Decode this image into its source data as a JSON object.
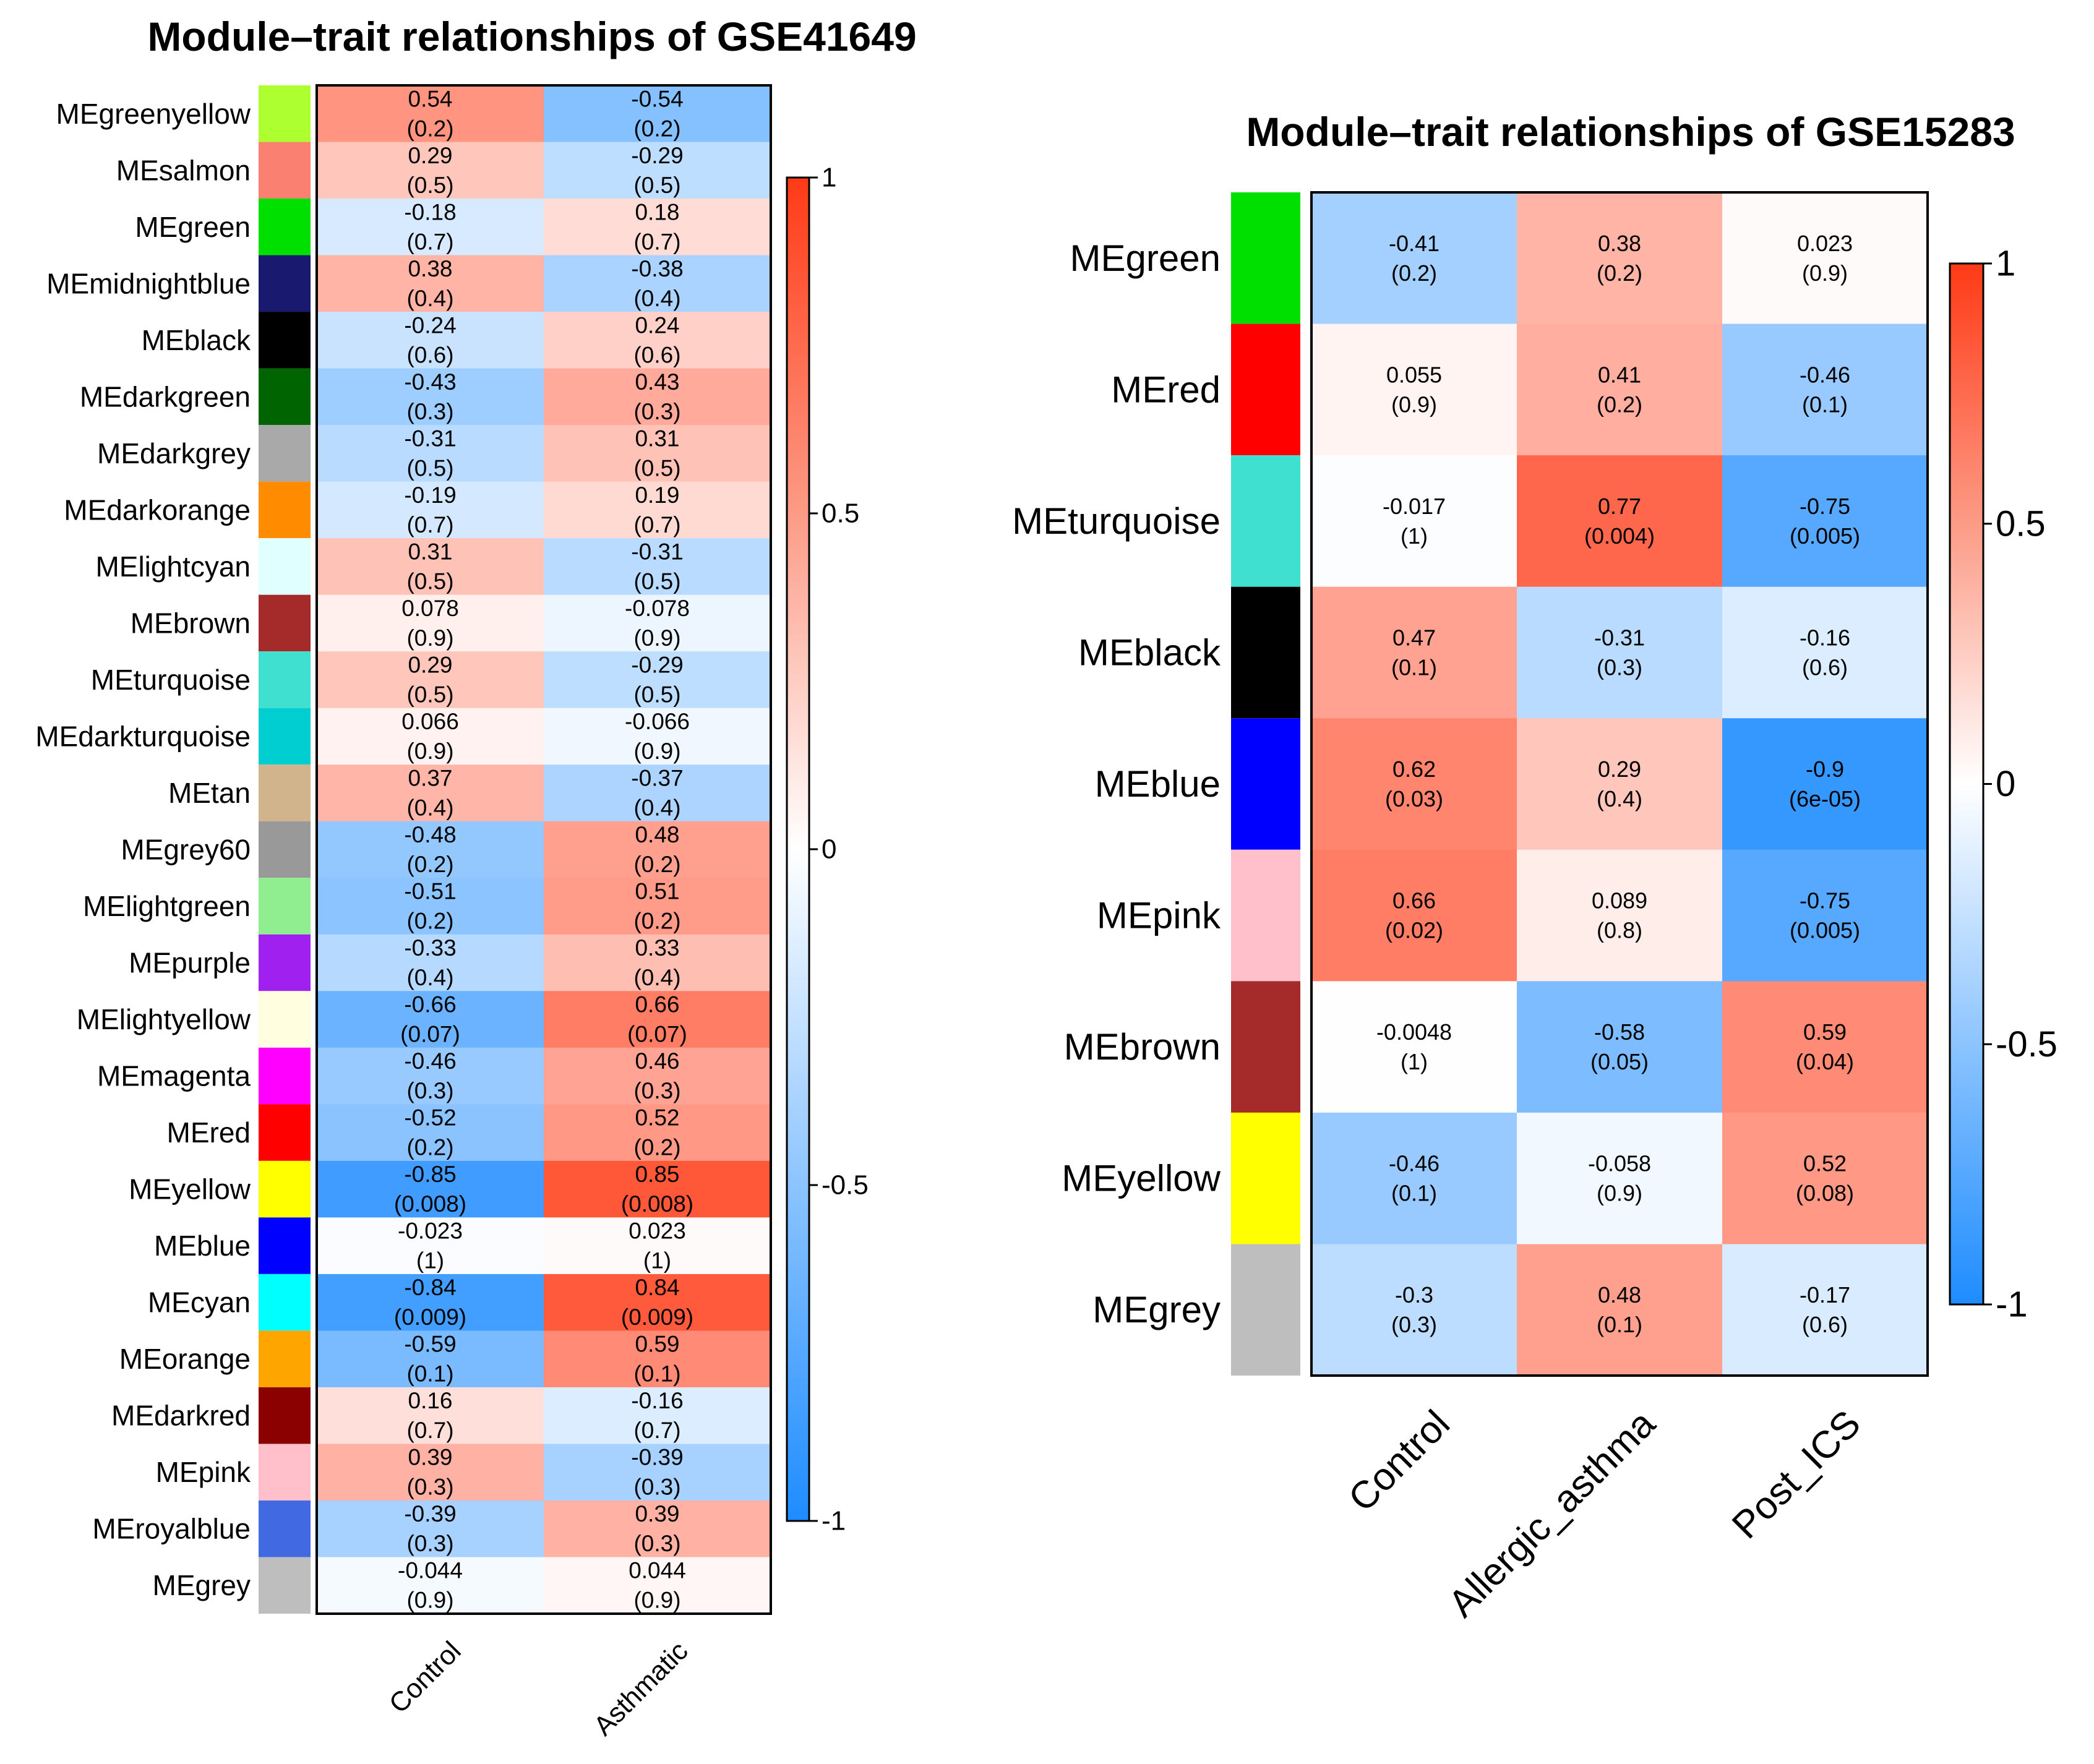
{
  "chart_data": [
    {
      "type": "heatmap",
      "title": "Module–trait relationships of GSE41649",
      "columns": [
        "Control",
        "Asthmatic"
      ],
      "rows": [
        {
          "module": "MEgreenyellow",
          "color": "#adff2f",
          "cells": [
            {
              "r": "0.54",
              "p": "(0.2)"
            },
            {
              "r": "-0.54",
              "p": "(0.2)"
            }
          ]
        },
        {
          "module": "MEsalmon",
          "color": "#fa8072",
          "cells": [
            {
              "r": "0.29",
              "p": "(0.5)"
            },
            {
              "r": "-0.29",
              "p": "(0.5)"
            }
          ]
        },
        {
          "module": "MEgreen",
          "color": "#00e000",
          "cells": [
            {
              "r": "-0.18",
              "p": "(0.7)"
            },
            {
              "r": "0.18",
              "p": "(0.7)"
            }
          ]
        },
        {
          "module": "MEmidnightblue",
          "color": "#191970",
          "cells": [
            {
              "r": "0.38",
              "p": "(0.4)"
            },
            {
              "r": "-0.38",
              "p": "(0.4)"
            }
          ]
        },
        {
          "module": "MEblack",
          "color": "#000000",
          "cells": [
            {
              "r": "-0.24",
              "p": "(0.6)"
            },
            {
              "r": "0.24",
              "p": "(0.6)"
            }
          ]
        },
        {
          "module": "MEdarkgreen",
          "color": "#006400",
          "cells": [
            {
              "r": "-0.43",
              "p": "(0.3)"
            },
            {
              "r": "0.43",
              "p": "(0.3)"
            }
          ]
        },
        {
          "module": "MEdarkgrey",
          "color": "#a9a9a9",
          "cells": [
            {
              "r": "-0.31",
              "p": "(0.5)"
            },
            {
              "r": "0.31",
              "p": "(0.5)"
            }
          ]
        },
        {
          "module": "MEdarkorange",
          "color": "#ff8c00",
          "cells": [
            {
              "r": "-0.19",
              "p": "(0.7)"
            },
            {
              "r": "0.19",
              "p": "(0.7)"
            }
          ]
        },
        {
          "module": "MElightcyan",
          "color": "#e0ffff",
          "cells": [
            {
              "r": "0.31",
              "p": "(0.5)"
            },
            {
              "r": "-0.31",
              "p": "(0.5)"
            }
          ]
        },
        {
          "module": "MEbrown",
          "color": "#a52a2a",
          "cells": [
            {
              "r": "0.078",
              "p": "(0.9)"
            },
            {
              "r": "-0.078",
              "p": "(0.9)"
            }
          ]
        },
        {
          "module": "MEturquoise",
          "color": "#40e0d0",
          "cells": [
            {
              "r": "0.29",
              "p": "(0.5)"
            },
            {
              "r": "-0.29",
              "p": "(0.5)"
            }
          ]
        },
        {
          "module": "MEdarkturquoise",
          "color": "#00ced1",
          "cells": [
            {
              "r": "0.066",
              "p": "(0.9)"
            },
            {
              "r": "-0.066",
              "p": "(0.9)"
            }
          ]
        },
        {
          "module": "MEtan",
          "color": "#d2b48c",
          "cells": [
            {
              "r": "0.37",
              "p": "(0.4)"
            },
            {
              "r": "-0.37",
              "p": "(0.4)"
            }
          ]
        },
        {
          "module": "MEgrey60",
          "color": "#999999",
          "cells": [
            {
              "r": "-0.48",
              "p": "(0.2)"
            },
            {
              "r": "0.48",
              "p": "(0.2)"
            }
          ]
        },
        {
          "module": "MElightgreen",
          "color": "#90ee90",
          "cells": [
            {
              "r": "-0.51",
              "p": "(0.2)"
            },
            {
              "r": "0.51",
              "p": "(0.2)"
            }
          ]
        },
        {
          "module": "MEpurple",
          "color": "#a020f0",
          "cells": [
            {
              "r": "-0.33",
              "p": "(0.4)"
            },
            {
              "r": "0.33",
              "p": "(0.4)"
            }
          ]
        },
        {
          "module": "MElightyellow",
          "color": "#ffffe0",
          "cells": [
            {
              "r": "-0.66",
              "p": "(0.07)"
            },
            {
              "r": "0.66",
              "p": "(0.07)"
            }
          ]
        },
        {
          "module": "MEmagenta",
          "color": "#ff00ff",
          "cells": [
            {
              "r": "-0.46",
              "p": "(0.3)"
            },
            {
              "r": "0.46",
              "p": "(0.3)"
            }
          ]
        },
        {
          "module": "MEred",
          "color": "#ff0000",
          "cells": [
            {
              "r": "-0.52",
              "p": "(0.2)"
            },
            {
              "r": "0.52",
              "p": "(0.2)"
            }
          ]
        },
        {
          "module": "MEyellow",
          "color": "#ffff00",
          "cells": [
            {
              "r": "-0.85",
              "p": "(0.008)"
            },
            {
              "r": "0.85",
              "p": "(0.008)"
            }
          ]
        },
        {
          "module": "MEblue",
          "color": "#0000ff",
          "cells": [
            {
              "r": "-0.023",
              "p": "(1)"
            },
            {
              "r": "0.023",
              "p": "(1)"
            }
          ]
        },
        {
          "module": "MEcyan",
          "color": "#00ffff",
          "cells": [
            {
              "r": "-0.84",
              "p": "(0.009)"
            },
            {
              "r": "0.84",
              "p": "(0.009)"
            }
          ]
        },
        {
          "module": "MEorange",
          "color": "#ffa500",
          "cells": [
            {
              "r": "-0.59",
              "p": "(0.1)"
            },
            {
              "r": "0.59",
              "p": "(0.1)"
            }
          ]
        },
        {
          "module": "MEdarkred",
          "color": "#8b0000",
          "cells": [
            {
              "r": "0.16",
              "p": "(0.7)"
            },
            {
              "r": "-0.16",
              "p": "(0.7)"
            }
          ]
        },
        {
          "module": "MEpink",
          "color": "#ffc0cb",
          "cells": [
            {
              "r": "0.39",
              "p": "(0.3)"
            },
            {
              "r": "-0.39",
              "p": "(0.3)"
            }
          ]
        },
        {
          "module": "MEroyalblue",
          "color": "#4169e1",
          "cells": [
            {
              "r": "-0.39",
              "p": "(0.3)"
            },
            {
              "r": "0.39",
              "p": "(0.3)"
            }
          ]
        },
        {
          "module": "MEgrey",
          "color": "#bebebe",
          "cells": [
            {
              "r": "-0.044",
              "p": "(0.9)"
            },
            {
              "r": "0.044",
              "p": "(0.9)"
            }
          ]
        }
      ],
      "legend": {
        "range": [
          -1,
          1
        ],
        "ticks": [
          "1",
          "0.5",
          "0",
          "-0.5",
          "-1"
        ],
        "low_color": "#1e8cff",
        "mid_color": "#ffffff",
        "high_color": "#ff3a16"
      }
    },
    {
      "type": "heatmap",
      "title": "Module–trait relationships of GSE15283",
      "columns": [
        "Control",
        "Allergic_asthma",
        "Post_ICS"
      ],
      "rows": [
        {
          "module": "MEgreen",
          "color": "#00e000",
          "cells": [
            {
              "r": "-0.41",
              "p": "(0.2)"
            },
            {
              "r": "0.38",
              "p": "(0.2)"
            },
            {
              "r": "0.023",
              "p": "(0.9)"
            }
          ]
        },
        {
          "module": "MEred",
          "color": "#ff0000",
          "cells": [
            {
              "r": "0.055",
              "p": "(0.9)"
            },
            {
              "r": "0.41",
              "p": "(0.2)"
            },
            {
              "r": "-0.46",
              "p": "(0.1)"
            }
          ]
        },
        {
          "module": "MEturquoise",
          "color": "#40e0d0",
          "cells": [
            {
              "r": "-0.017",
              "p": "(1)"
            },
            {
              "r": "0.77",
              "p": "(0.004)"
            },
            {
              "r": "-0.75",
              "p": "(0.005)"
            }
          ]
        },
        {
          "module": "MEblack",
          "color": "#000000",
          "cells": [
            {
              "r": "0.47",
              "p": "(0.1)"
            },
            {
              "r": "-0.31",
              "p": "(0.3)"
            },
            {
              "r": "-0.16",
              "p": "(0.6)"
            }
          ]
        },
        {
          "module": "MEblue",
          "color": "#0000ff",
          "cells": [
            {
              "r": "0.62",
              "p": "(0.03)"
            },
            {
              "r": "0.29",
              "p": "(0.4)"
            },
            {
              "r": "-0.9",
              "p": "(6e-05)"
            }
          ]
        },
        {
          "module": "MEpink",
          "color": "#ffc0cb",
          "cells": [
            {
              "r": "0.66",
              "p": "(0.02)"
            },
            {
              "r": "0.089",
              "p": "(0.8)"
            },
            {
              "r": "-0.75",
              "p": "(0.005)"
            }
          ]
        },
        {
          "module": "MEbrown",
          "color": "#a52a2a",
          "cells": [
            {
              "r": "-0.0048",
              "p": "(1)"
            },
            {
              "r": "-0.58",
              "p": "(0.05)"
            },
            {
              "r": "0.59",
              "p": "(0.04)"
            }
          ]
        },
        {
          "module": "MEyellow",
          "color": "#ffff00",
          "cells": [
            {
              "r": "-0.46",
              "p": "(0.1)"
            },
            {
              "r": "-0.058",
              "p": "(0.9)"
            },
            {
              "r": "0.52",
              "p": "(0.08)"
            }
          ]
        },
        {
          "module": "MEgrey",
          "color": "#bebebe",
          "cells": [
            {
              "r": "-0.3",
              "p": "(0.3)"
            },
            {
              "r": "0.48",
              "p": "(0.1)"
            },
            {
              "r": "-0.17",
              "p": "(0.6)"
            }
          ]
        }
      ],
      "legend": {
        "range": [
          -1,
          1
        ],
        "ticks": [
          "1",
          "0.5",
          "0",
          "-0.5",
          "-1"
        ],
        "low_color": "#1e8cff",
        "mid_color": "#ffffff",
        "high_color": "#ff3a16"
      }
    }
  ]
}
